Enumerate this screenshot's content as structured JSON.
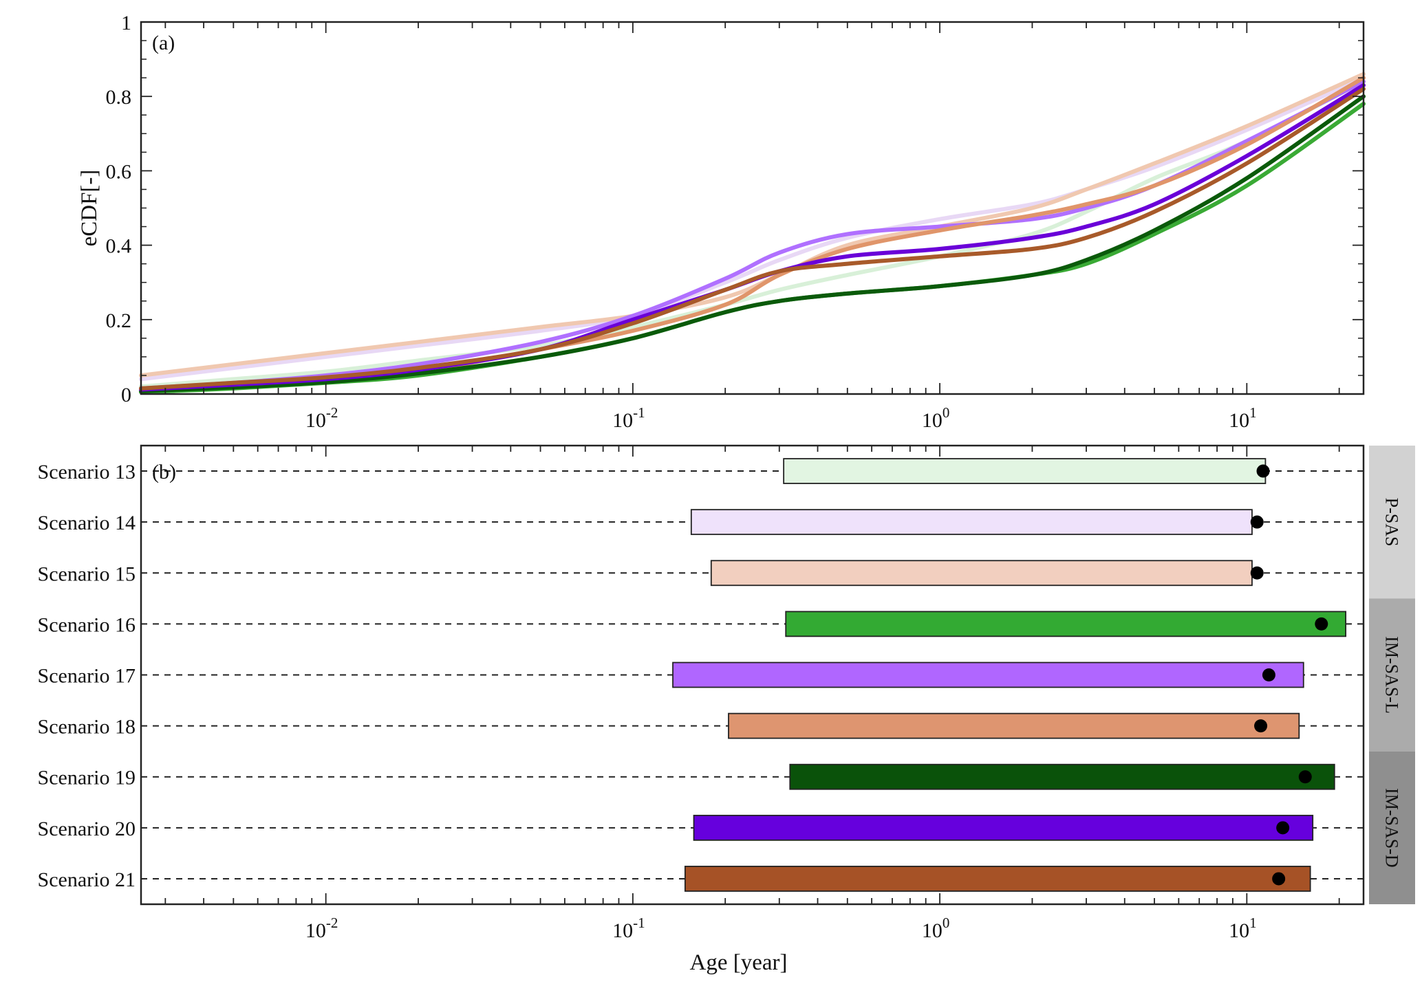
{
  "chart_data": [
    {
      "panel": "(a)",
      "type": "line",
      "ylabel": "eCDF[-]",
      "xlabel": "",
      "x_scale": "log",
      "xlim": [
        0.0025,
        24
      ],
      "ylim": [
        0,
        1
      ],
      "x_ticks": [
        {
          "value": 0.01,
          "base": "10",
          "exp": "-2"
        },
        {
          "value": 0.1,
          "base": "10",
          "exp": "-1"
        },
        {
          "value": 1,
          "base": "10",
          "exp": "0"
        },
        {
          "value": 10,
          "base": "10",
          "exp": "1"
        }
      ],
      "y_ticks": [
        {
          "value": 0,
          "label": "0"
        },
        {
          "value": 0.2,
          "label": "0.2"
        },
        {
          "value": 0.4,
          "label": "0.4"
        },
        {
          "value": 0.6,
          "label": "0.6"
        },
        {
          "value": 0.8,
          "label": "0.8"
        },
        {
          "value": 1,
          "label": "1"
        }
      ],
      "grid": false,
      "legend": "none",
      "x": [
        0.0025,
        0.005,
        0.01,
        0.02,
        0.05,
        0.1,
        0.2,
        0.3,
        0.5,
        1,
        2,
        3,
        5,
        10,
        24
      ],
      "series": [
        {
          "scenario": 13,
          "color": "#d8f0d8",
          "values": [
            0.02,
            0.04,
            0.06,
            0.09,
            0.13,
            0.18,
            0.24,
            0.28,
            0.32,
            0.37,
            0.43,
            0.49,
            0.58,
            0.68,
            0.84
          ]
        },
        {
          "scenario": 14,
          "color": "#e8d8f5",
          "values": [
            0.04,
            0.07,
            0.1,
            0.13,
            0.17,
            0.21,
            0.3,
            0.36,
            0.42,
            0.47,
            0.51,
            0.55,
            0.61,
            0.71,
            0.85
          ]
        },
        {
          "scenario": 15,
          "color": "#f0c8b0",
          "values": [
            0.05,
            0.08,
            0.11,
            0.14,
            0.18,
            0.21,
            0.26,
            0.32,
            0.4,
            0.45,
            0.5,
            0.55,
            0.62,
            0.72,
            0.86
          ]
        },
        {
          "scenario": 16,
          "color": "#3aaa35",
          "values": [
            0.005,
            0.015,
            0.03,
            0.05,
            0.1,
            0.15,
            0.22,
            0.25,
            0.27,
            0.29,
            0.32,
            0.35,
            0.43,
            0.56,
            0.78
          ]
        },
        {
          "scenario": 17,
          "color": "#b070ff",
          "values": [
            0.015,
            0.03,
            0.05,
            0.08,
            0.14,
            0.21,
            0.31,
            0.38,
            0.43,
            0.45,
            0.47,
            0.5,
            0.56,
            0.68,
            0.84
          ]
        },
        {
          "scenario": 18,
          "color": "#e0956a",
          "values": [
            0.01,
            0.02,
            0.04,
            0.06,
            0.12,
            0.17,
            0.24,
            0.32,
            0.39,
            0.44,
            0.48,
            0.51,
            0.56,
            0.67,
            0.85
          ]
        },
        {
          "scenario": 19,
          "color": "#0a5a0a",
          "values": [
            0.008,
            0.018,
            0.032,
            0.055,
            0.1,
            0.15,
            0.22,
            0.25,
            0.27,
            0.29,
            0.32,
            0.36,
            0.44,
            0.58,
            0.8
          ]
        },
        {
          "scenario": 20,
          "color": "#6a00d8",
          "values": [
            0.012,
            0.025,
            0.04,
            0.065,
            0.12,
            0.2,
            0.28,
            0.33,
            0.37,
            0.39,
            0.42,
            0.45,
            0.51,
            0.64,
            0.83
          ]
        },
        {
          "scenario": 21,
          "color": "#a85a2a",
          "values": [
            0.015,
            0.03,
            0.045,
            0.07,
            0.12,
            0.19,
            0.28,
            0.33,
            0.35,
            0.37,
            0.39,
            0.42,
            0.49,
            0.62,
            0.82
          ]
        }
      ]
    },
    {
      "panel": "(b)",
      "type": "bar",
      "orientation": "horizontal",
      "xlabel": "Age [year]",
      "x_scale": "log",
      "xlim": [
        0.0025,
        24
      ],
      "x_ticks": [
        {
          "value": 0.01,
          "base": "10",
          "exp": "-2"
        },
        {
          "value": 0.1,
          "base": "10",
          "exp": "-1"
        },
        {
          "value": 1,
          "base": "10",
          "exp": "0"
        },
        {
          "value": 10,
          "base": "10",
          "exp": "1"
        }
      ],
      "grid": false,
      "legend": "none",
      "rows": [
        {
          "label": "Scenario 13",
          "low": 0.31,
          "high": 11.5,
          "marker": 11.3,
          "color": "#e2f5e2"
        },
        {
          "label": "Scenario 14",
          "low": 0.155,
          "high": 10.4,
          "marker": 10.8,
          "color": "#efe2fb"
        },
        {
          "label": "Scenario 15",
          "low": 0.18,
          "high": 10.4,
          "marker": 10.8,
          "color": "#f2cfbf"
        },
        {
          "label": "Scenario 16",
          "low": 0.315,
          "high": 21,
          "marker": 17.5,
          "color": "#33aa33"
        },
        {
          "label": "Scenario 17",
          "low": 0.135,
          "high": 15.3,
          "marker": 11.8,
          "color": "#b066ff"
        },
        {
          "label": "Scenario 18",
          "low": 0.205,
          "high": 14.8,
          "marker": 11.1,
          "color": "#de9570"
        },
        {
          "label": "Scenario 19",
          "low": 0.325,
          "high": 19.3,
          "marker": 15.5,
          "color": "#0a520a"
        },
        {
          "label": "Scenario 20",
          "low": 0.158,
          "high": 16.4,
          "marker": 13.1,
          "color": "#6600dd"
        },
        {
          "label": "Scenario 21",
          "low": 0.148,
          "high": 16.1,
          "marker": 12.7,
          "color": "#a65226"
        }
      ],
      "groups": [
        {
          "label": "P-SAS",
          "from": 0,
          "to": 2,
          "color": "#d2d2d2"
        },
        {
          "label": "IM-SAS-L",
          "from": 3,
          "to": 5,
          "color": "#ababab"
        },
        {
          "label": "IM-SAS-D",
          "from": 6,
          "to": 8,
          "color": "#8f8f8f"
        }
      ]
    }
  ]
}
